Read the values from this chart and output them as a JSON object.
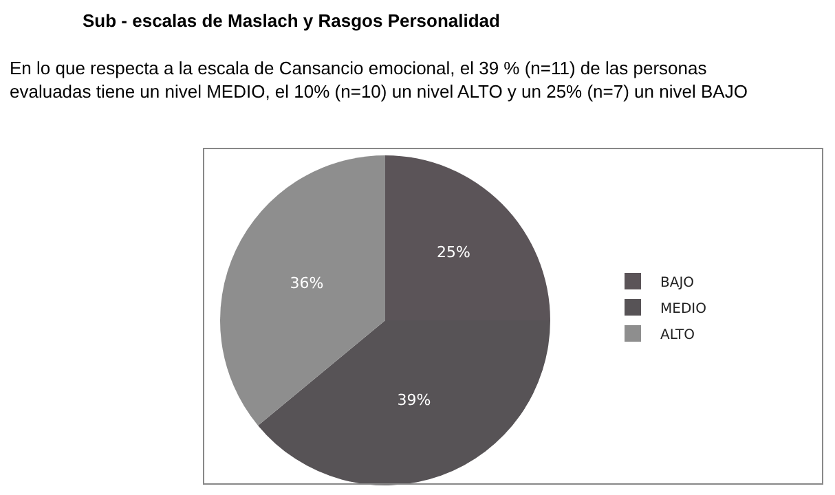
{
  "chart_data": {
    "type": "pie",
    "title": "Sub - escalas de Maslach y Rasgos Personalidad",
    "subtitle": "En lo que respecta a la escala de Cansancio emocional, el 39 % (n=11) de las personas\nevaluadas tiene un nivel MEDIO, el 10% (n=10) un nivel ALTO y un 25% (n=7) un nivel BAJO",
    "categories": [
      "BAJO",
      "MEDIO",
      "ALTO"
    ],
    "values": [
      25,
      39,
      36
    ],
    "colors": [
      "#5b5458",
      "#575356",
      "#8e8e8e"
    ],
    "value_labels": [
      "25%",
      "39%",
      "36%"
    ],
    "legend": "right"
  }
}
